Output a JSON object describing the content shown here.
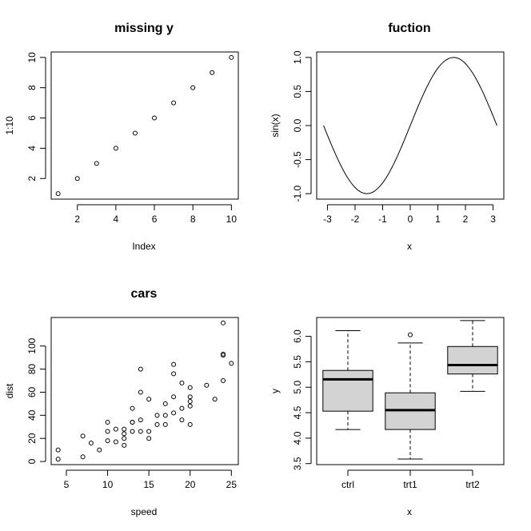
{
  "chart_data": [
    {
      "type": "scatter",
      "title": "missing y",
      "xlabel": "Index",
      "ylabel": "1:10",
      "xlim": [
        0.64,
        10.36
      ],
      "ylim": [
        0.64,
        10.36
      ],
      "xticks": [
        2,
        4,
        6,
        8,
        10
      ],
      "yticks": [
        2,
        4,
        6,
        8,
        10
      ],
      "x": [
        1,
        2,
        3,
        4,
        5,
        6,
        7,
        8,
        9,
        10
      ],
      "y": [
        1,
        2,
        3,
        4,
        5,
        6,
        7,
        8,
        9,
        10
      ]
    },
    {
      "type": "line",
      "title": "fuction",
      "xlabel": "x",
      "ylabel": "sin(x)",
      "xlim": [
        -3.39,
        3.39
      ],
      "ylim": [
        -1.08,
        1.08
      ],
      "xticks": [
        -3,
        -2,
        -1,
        0,
        1,
        2,
        3
      ],
      "yticks": [
        -1.0,
        -0.5,
        0.0,
        0.5,
        1.0
      ],
      "ytick_labels": [
        "-1.0",
        "-0.5",
        "0.0",
        "0.5",
        "1.0"
      ],
      "function": "sin(x)",
      "domain": [
        -3.14159,
        3.14159
      ]
    },
    {
      "type": "scatter",
      "title": "cars",
      "xlabel": "speed",
      "ylabel": "dist",
      "xlim": [
        3.16,
        25.84
      ],
      "ylim": [
        -2.72,
        124.72
      ],
      "xticks": [
        5,
        10,
        15,
        20,
        25
      ],
      "yticks": [
        0,
        20,
        40,
        60,
        80,
        100
      ],
      "x": [
        4,
        4,
        7,
        7,
        8,
        9,
        10,
        10,
        10,
        11,
        11,
        12,
        12,
        12,
        12,
        13,
        13,
        13,
        13,
        14,
        14,
        14,
        14,
        15,
        15,
        15,
        16,
        16,
        17,
        17,
        17,
        18,
        18,
        18,
        18,
        19,
        19,
        19,
        20,
        20,
        20,
        20,
        20,
        22,
        23,
        24,
        24,
        24,
        24,
        25
      ],
      "y": [
        2,
        10,
        4,
        22,
        16,
        10,
        18,
        26,
        34,
        17,
        28,
        14,
        20,
        24,
        28,
        26,
        34,
        34,
        46,
        26,
        36,
        60,
        80,
        20,
        26,
        54,
        32,
        40,
        32,
        40,
        50,
        42,
        56,
        76,
        84,
        36,
        46,
        68,
        32,
        48,
        52,
        56,
        64,
        66,
        54,
        70,
        92,
        93,
        120,
        85
      ]
    },
    {
      "type": "box",
      "title": "",
      "xlabel": "x",
      "ylabel": "y",
      "ylim": [
        3.48,
        6.37
      ],
      "yticks": [
        3.5,
        4.0,
        4.5,
        5.0,
        5.5,
        6.0
      ],
      "ytick_labels": [
        "3.5",
        "4.0",
        "4.5",
        "5.0",
        "5.5",
        "6.0"
      ],
      "categories": [
        "ctrl",
        "trt1",
        "trt2"
      ],
      "boxes": [
        {
          "min": 4.17,
          "q1": 4.53,
          "median": 5.155,
          "q3": 5.33,
          "max": 6.11,
          "outliers": []
        },
        {
          "min": 3.59,
          "q1": 4.17,
          "median": 4.55,
          "q3": 4.89,
          "max": 5.87,
          "outliers": [
            6.03
          ]
        },
        {
          "min": 4.92,
          "q1": 5.26,
          "median": 5.435,
          "q3": 5.8,
          "max": 6.31,
          "outliers": []
        }
      ],
      "fill": "#d3d3d3"
    }
  ]
}
